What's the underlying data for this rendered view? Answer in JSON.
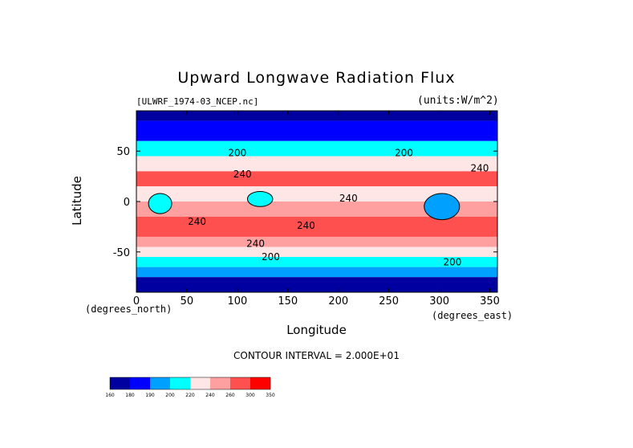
{
  "chart_data": {
    "type": "heatmap",
    "title": "Upward Longwave Radiation Flux",
    "subtitle_left": "[ULWRF_1974-03_NCEP.nc]",
    "subtitle_right": "(units:W/m^2)",
    "xlabel": "Longitude",
    "ylabel": "Latitude",
    "x_unit_label": "(degrees_east)",
    "y_unit_label": "(degrees_north)",
    "xlim": [
      0,
      357.5
    ],
    "ylim": [
      -90,
      90
    ],
    "x_ticks": [
      0,
      50,
      100,
      150,
      200,
      250,
      300,
      350
    ],
    "y_ticks": [
      50,
      0,
      -50
    ],
    "contour_interval_text": "CONTOUR INTERVAL = 2.000E+01",
    "contour_labels": [
      {
        "lon": 100,
        "lat": 48,
        "text": "200"
      },
      {
        "lon": 265,
        "lat": 48,
        "text": "200"
      },
      {
        "lon": 105,
        "lat": 27,
        "text": "240"
      },
      {
        "lon": 340,
        "lat": 33,
        "text": "240"
      },
      {
        "lon": 210,
        "lat": 3,
        "text": "240"
      },
      {
        "lon": 60,
        "lat": -20,
        "text": "240"
      },
      {
        "lon": 168,
        "lat": -24,
        "text": "240"
      },
      {
        "lon": 118,
        "lat": -42,
        "text": "240"
      },
      {
        "lon": 133,
        "lat": -55,
        "text": "200"
      },
      {
        "lon": 313,
        "lat": -60,
        "text": "200"
      }
    ],
    "colorbar": {
      "levels": [
        160,
        180,
        190,
        200,
        220,
        240,
        260,
        300,
        350
      ],
      "colors": [
        "#0000a0",
        "#0000ff",
        "#00a0ff",
        "#00ffff",
        "#ffe6e6",
        "#ffa0a0",
        "#ff5050",
        "#ff0000"
      ]
    },
    "latitude_bands": [
      {
        "lat_range": [
          80,
          90
        ],
        "range": "< 180"
      },
      {
        "lat_range": [
          60,
          80
        ],
        "range": "180-200"
      },
      {
        "lat_range": [
          45,
          60
        ],
        "range": "200-220"
      },
      {
        "lat_range": [
          30,
          45
        ],
        "range": "220-240"
      },
      {
        "lat_range": [
          15,
          30
        ],
        "range": "260-300"
      },
      {
        "lat_range": [
          0,
          15
        ],
        "range": "220-260"
      },
      {
        "lat_range": [
          -15,
          0
        ],
        "range": "240-260"
      },
      {
        "lat_range": [
          -35,
          -15
        ],
        "range": "260-300"
      },
      {
        "lat_range": [
          -45,
          -35
        ],
        "range": "240-260"
      },
      {
        "lat_range": [
          -55,
          -45
        ],
        "range": "220-240"
      },
      {
        "lat_range": [
          -65,
          -55
        ],
        "range": "200-220"
      },
      {
        "lat_range": [
          -75,
          -65
        ],
        "range": "190-200"
      },
      {
        "lat_range": [
          -90,
          -75
        ],
        "range": "< 180"
      }
    ],
    "features": [
      {
        "name": "south-america-cold-patch",
        "lon_range": [
          285,
          320
        ],
        "lat_range": [
          -18,
          8
        ],
        "range": "< 200"
      },
      {
        "name": "africa-cold-patch",
        "lon_range": [
          12,
          35
        ],
        "lat_range": [
          -12,
          8
        ],
        "range": "200-220"
      },
      {
        "name": "maritime-continent-cold-patch",
        "lon_range": [
          110,
          135
        ],
        "lat_range": [
          -5,
          10
        ],
        "range": "200-220"
      }
    ],
    "grid": false,
    "colorbar_placement": "bottom-left"
  }
}
